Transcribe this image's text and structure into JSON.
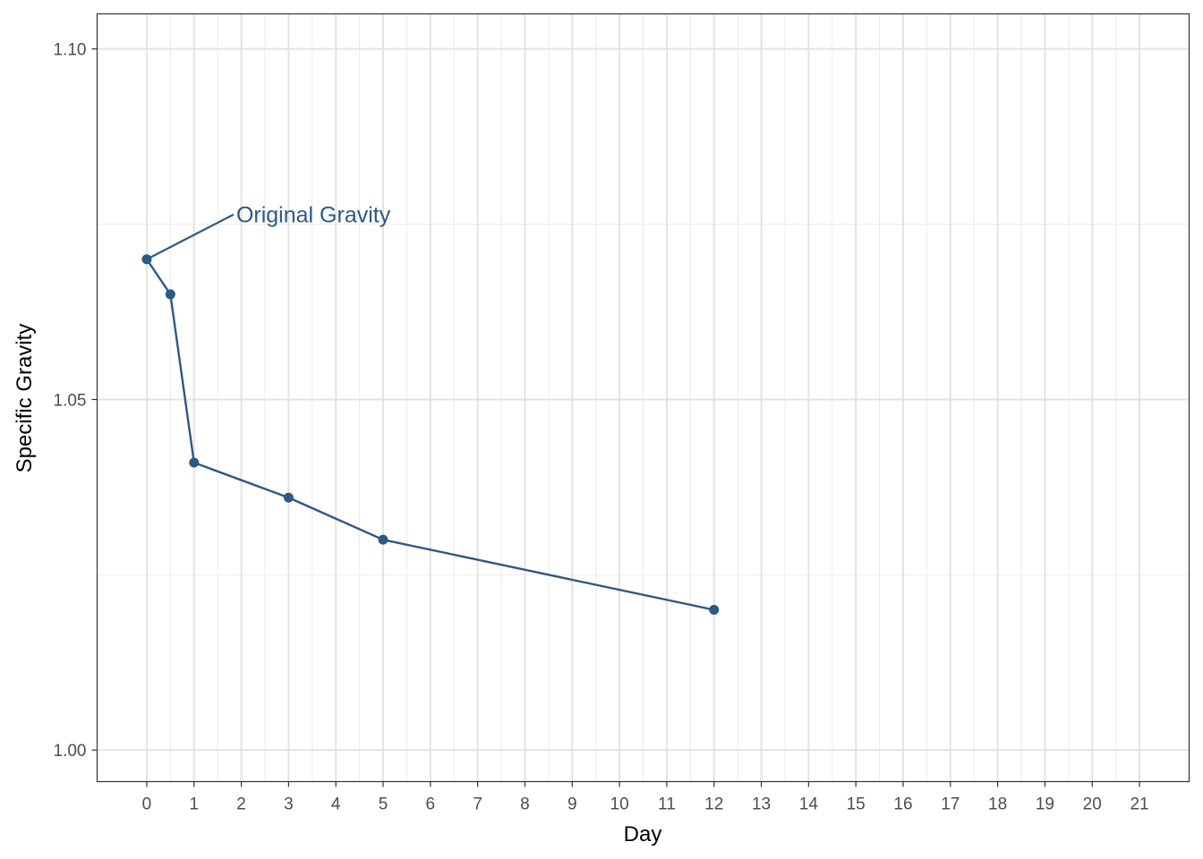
{
  "chart_data": {
    "type": "line",
    "xlabel": "Day",
    "ylabel": "Specific Gravity",
    "xlim": [
      -1.05,
      22.05
    ],
    "ylim": [
      0.9955,
      1.105
    ],
    "x_ticks": [
      0,
      1,
      2,
      3,
      4,
      5,
      6,
      7,
      8,
      9,
      10,
      11,
      12,
      13,
      14,
      15,
      16,
      17,
      18,
      19,
      20,
      21
    ],
    "x_tick_labels": [
      "0",
      "1",
      "2",
      "3",
      "4",
      "5",
      "6",
      "7",
      "8",
      "9",
      "10",
      "11",
      "12",
      "13",
      "14",
      "15",
      "16",
      "17",
      "18",
      "19",
      "20",
      "21"
    ],
    "y_ticks": [
      1.0,
      1.05,
      1.1
    ],
    "y_tick_labels": [
      "1.00",
      "1.05",
      "1.10"
    ],
    "grid": true,
    "series": [
      {
        "color": "#2c5985",
        "x": [
          0,
          0.5,
          1,
          3,
          5,
          12
        ],
        "y": [
          1.07,
          1.065,
          1.041,
          1.036,
          1.03,
          1.02
        ]
      }
    ],
    "annotations": [
      {
        "text": "Original Gravity",
        "x": 0,
        "y": 1.07,
        "color": "#2c5985"
      }
    ]
  }
}
